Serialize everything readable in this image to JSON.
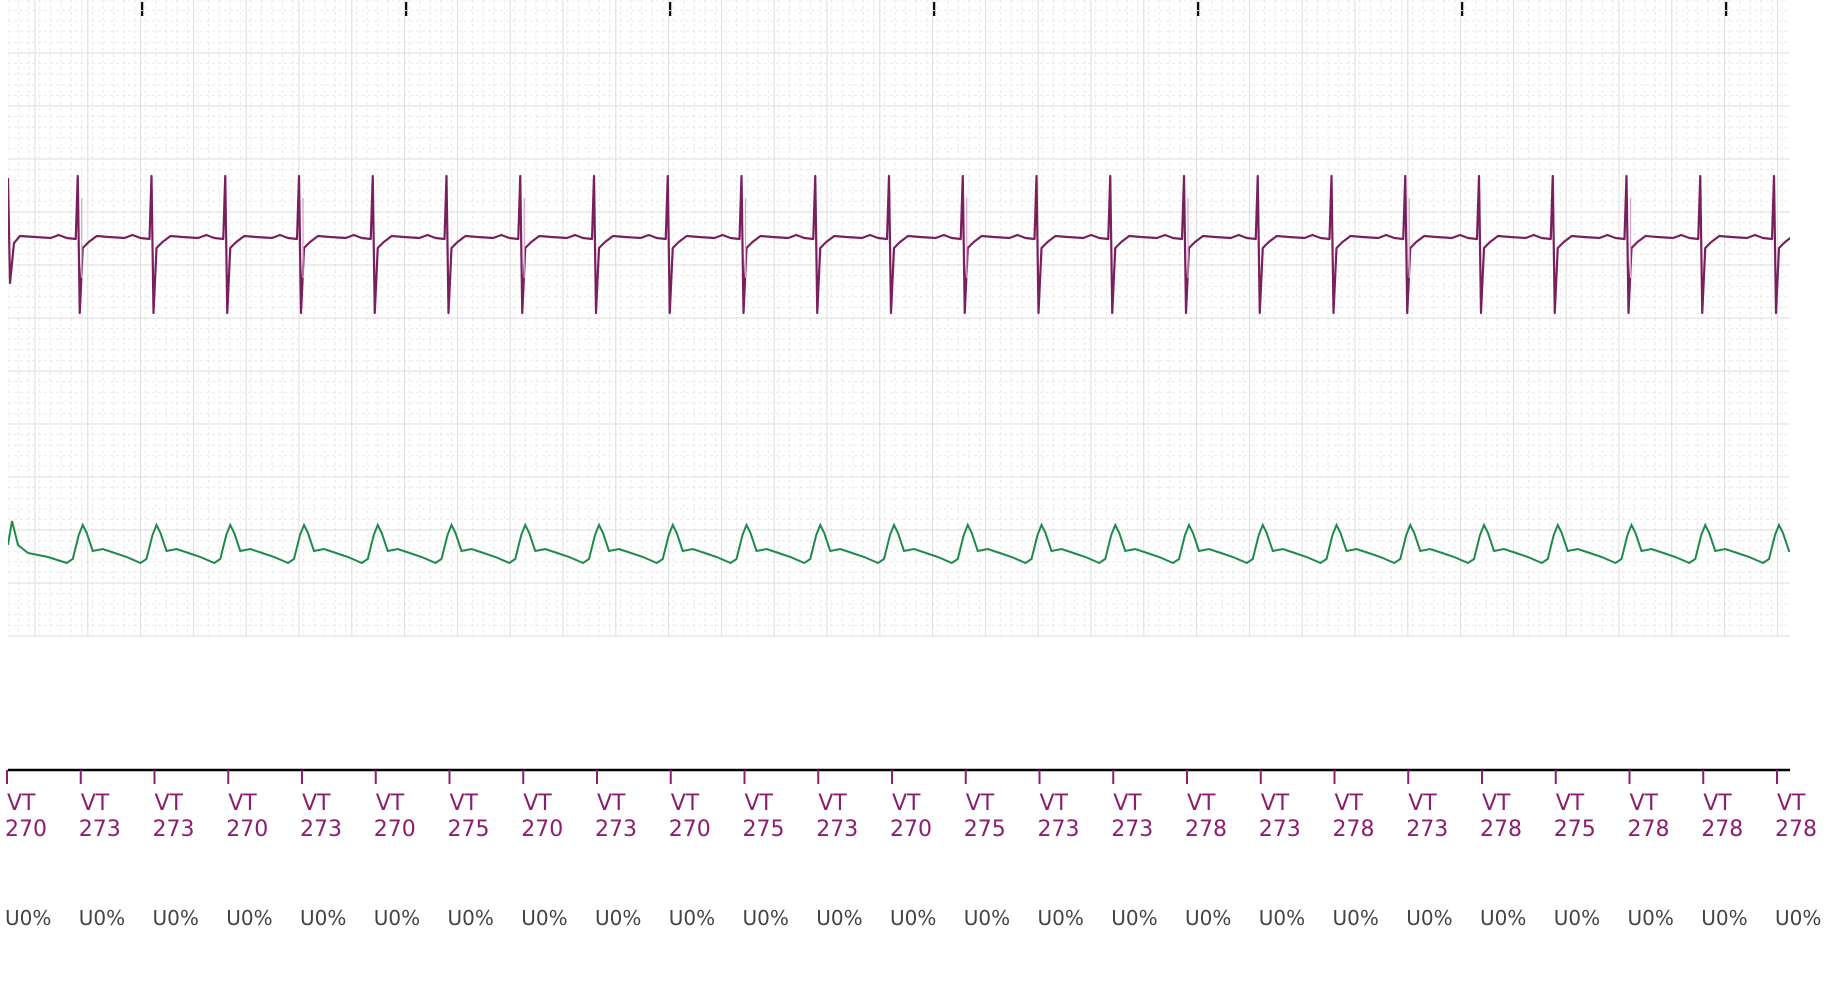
{
  "colors": {
    "ecg_trace": "#7a1f5e",
    "ecg_trace_highlight": "#d9a0c8",
    "pressure_trace": "#1e8a4a",
    "beat_label": "#8b1f6e",
    "beat_sublabel": "#444444",
    "grid_major": "#dcdcdc",
    "grid_minor": "#e9e9e9",
    "axis": "#000000"
  },
  "waveforms": {
    "ecg": {
      "name": "ecg-trace",
      "beat_count": 25
    },
    "pressure": {
      "name": "pressure-trace",
      "beat_count": 25
    }
  },
  "beats": [
    {
      "type": "VT",
      "value": "270",
      "sub": "U0%"
    },
    {
      "type": "VT",
      "value": "273",
      "sub": "U0%"
    },
    {
      "type": "VT",
      "value": "273",
      "sub": "U0%"
    },
    {
      "type": "VT",
      "value": "270",
      "sub": "U0%"
    },
    {
      "type": "VT",
      "value": "273",
      "sub": "U0%"
    },
    {
      "type": "VT",
      "value": "270",
      "sub": "U0%"
    },
    {
      "type": "VT",
      "value": "275",
      "sub": "U0%"
    },
    {
      "type": "VT",
      "value": "270",
      "sub": "U0%"
    },
    {
      "type": "VT",
      "value": "273",
      "sub": "U0%"
    },
    {
      "type": "VT",
      "value": "270",
      "sub": "U0%"
    },
    {
      "type": "VT",
      "value": "275",
      "sub": "U0%"
    },
    {
      "type": "VT",
      "value": "273",
      "sub": "U0%"
    },
    {
      "type": "VT",
      "value": "270",
      "sub": "U0%"
    },
    {
      "type": "VT",
      "value": "275",
      "sub": "U0%"
    },
    {
      "type": "VT",
      "value": "273",
      "sub": "U0%"
    },
    {
      "type": "VT",
      "value": "273",
      "sub": "U0%"
    },
    {
      "type": "VT",
      "value": "278",
      "sub": "U0%"
    },
    {
      "type": "VT",
      "value": "273",
      "sub": "U0%"
    },
    {
      "type": "VT",
      "value": "278",
      "sub": "U0%"
    },
    {
      "type": "VT",
      "value": "273",
      "sub": "U0%"
    },
    {
      "type": "VT",
      "value": "278",
      "sub": "U0%"
    },
    {
      "type": "VT",
      "value": "275",
      "sub": "U0%"
    },
    {
      "type": "VT",
      "value": "278",
      "sub": "U0%"
    },
    {
      "type": "VT",
      "value": "278",
      "sub": "U0%"
    },
    {
      "type": "VT",
      "value": "278",
      "sub": "U0%"
    }
  ]
}
